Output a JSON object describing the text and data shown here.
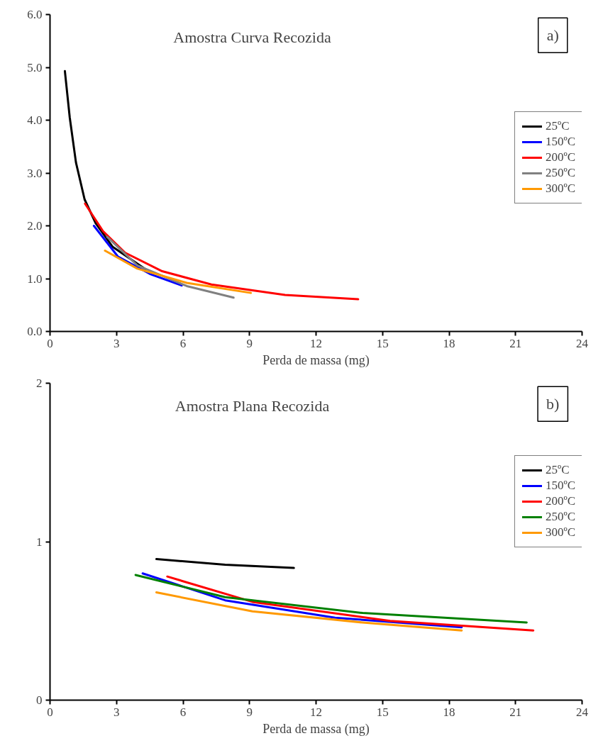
{
  "chart_data": [
    {
      "type": "line",
      "title": "Amostra Curva Recozida",
      "xlabel": "Perda de massa (mg)",
      "annotations": [
        "a)"
      ],
      "legend": "right",
      "grid": false,
      "marker": "none",
      "line_style": "solid",
      "xlim": [
        0,
        24
      ],
      "xticks": [
        0,
        3,
        6,
        9,
        12,
        15,
        18,
        21,
        24
      ],
      "ylim": [
        0,
        6
      ],
      "yticks": [
        {
          "value": 0,
          "label": "0.0"
        },
        {
          "value": 1,
          "label": "1.0"
        },
        {
          "value": 2,
          "label": "2.0"
        },
        {
          "value": 3,
          "label": "3.0"
        },
        {
          "value": 4,
          "label": "4.0"
        },
        {
          "value": 5,
          "label": "5.0"
        },
        {
          "value": 6,
          "label": "6.0"
        }
      ],
      "series": [
        {
          "name": "25ºC",
          "color": "#000000",
          "x": [
            0.67,
            0.89,
            1.17,
            1.56,
            2.06,
            2.83,
            4.33
          ],
          "values": [
            4.93,
            4.05,
            3.2,
            2.5,
            2.05,
            1.6,
            1.17
          ]
        },
        {
          "name": "150ºC",
          "color": "#0000ff",
          "x": [
            1.98,
            3.06,
            4.5,
            5.94
          ],
          "values": [
            2.0,
            1.42,
            1.09,
            0.87
          ]
        },
        {
          "name": "200ºC",
          "color": "#ff0000",
          "x": [
            1.58,
            2.39,
            3.39,
            5.06,
            7.28,
            10.6,
            13.9
          ],
          "values": [
            2.42,
            1.9,
            1.49,
            1.14,
            0.89,
            0.69,
            0.61
          ]
        },
        {
          "name": "250ºC",
          "color": "#808080",
          "x": [
            2.58,
            3.94,
            6.17,
            8.28
          ],
          "values": [
            1.79,
            1.25,
            0.86,
            0.64
          ]
        },
        {
          "name": "300ºC",
          "color": "#ff9900",
          "x": [
            2.48,
            3.94,
            6.17,
            9.06
          ],
          "values": [
            1.53,
            1.19,
            0.92,
            0.73
          ]
        }
      ]
    },
    {
      "type": "line",
      "title": "Amostra Plana Recozida",
      "xlabel": "Perda de massa (mg)",
      "annotations": [
        "b)"
      ],
      "legend": "top right",
      "grid": false,
      "marker": "none",
      "line_style": "solid",
      "xlim": [
        0,
        24
      ],
      "xticks": [
        0,
        3,
        6,
        9,
        12,
        15,
        18,
        21,
        24
      ],
      "ylim": [
        0,
        2
      ],
      "yticks": [
        0,
        1,
        2
      ],
      "series": [
        {
          "name": "25ºC",
          "color": "#000000",
          "x": [
            4.8,
            7.9,
            11.0
          ],
          "values": [
            0.89,
            0.855,
            0.834
          ]
        },
        {
          "name": "150ºC",
          "color": "#0000ff",
          "x": [
            4.18,
            7.9,
            12.86,
            18.57
          ],
          "values": [
            0.8,
            0.63,
            0.52,
            0.46
          ]
        },
        {
          "name": "200ºC",
          "color": "#ff0000",
          "x": [
            5.29,
            9.13,
            15.34,
            21.8
          ],
          "values": [
            0.78,
            0.62,
            0.5,
            0.44
          ]
        },
        {
          "name": "250ºC",
          "color": "#008000",
          "x": [
            3.86,
            7.9,
            14.1,
            21.5
          ],
          "values": [
            0.79,
            0.65,
            0.55,
            0.49
          ]
        },
        {
          "name": "300ºC",
          "color": "#ff9900",
          "x": [
            4.8,
            9.13,
            14.1,
            18.57
          ],
          "values": [
            0.68,
            0.56,
            0.49,
            0.44
          ]
        }
      ]
    }
  ]
}
